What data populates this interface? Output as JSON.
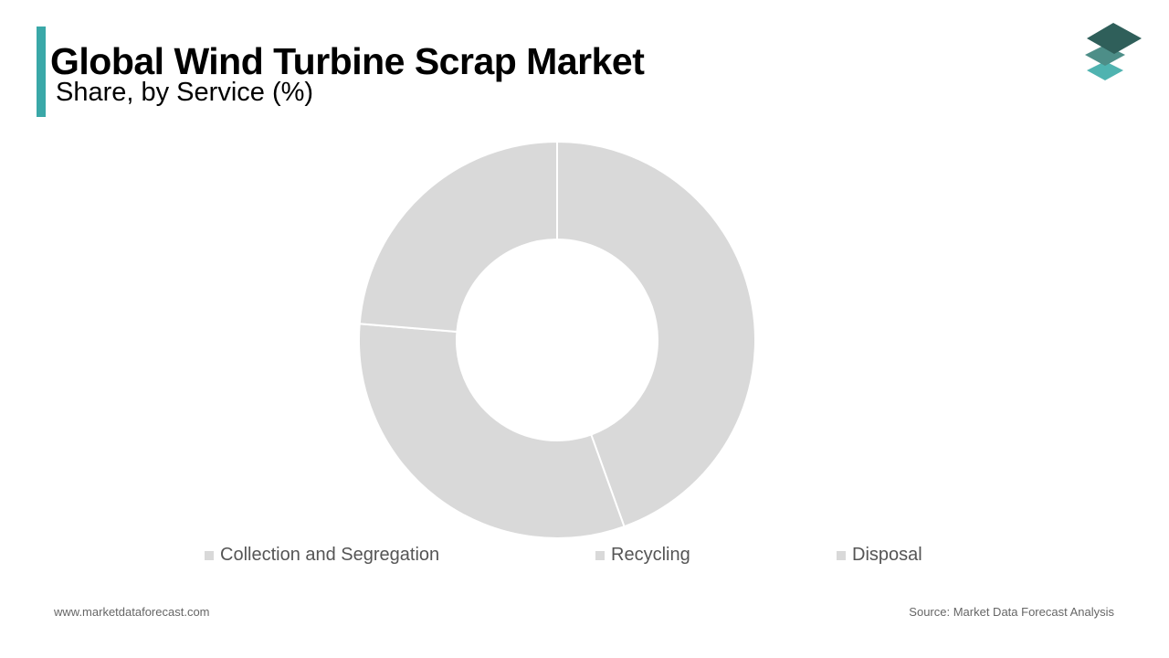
{
  "header": {
    "title": "Global Wind Turbine Scrap Market",
    "subtitle": "Share, by Service  (%)"
  },
  "chart_data": {
    "type": "pie",
    "title": "Global Wind Turbine Scrap Market",
    "subtitle": "Share, by Service  (%)",
    "categories": [
      "Collection and Segregation",
      "Recycling",
      "Disposal"
    ],
    "values": [
      44.5,
      31.8,
      23.7
    ],
    "colors": [
      "#d9d9d9",
      "#d9d9d9",
      "#d9d9d9"
    ],
    "legend_position": "bottom"
  },
  "footer": {
    "website": "www.marketdataforecast.com",
    "source": "Source: Market Data Forecast Analysis"
  },
  "colors": {
    "accent": "#3aa8a8",
    "logo_top": "#2f5f5a",
    "logo_mid": "#4d8e88",
    "logo_bottom": "#4fb3b0"
  },
  "logo": {
    "icon": "stacked-layers-icon"
  }
}
